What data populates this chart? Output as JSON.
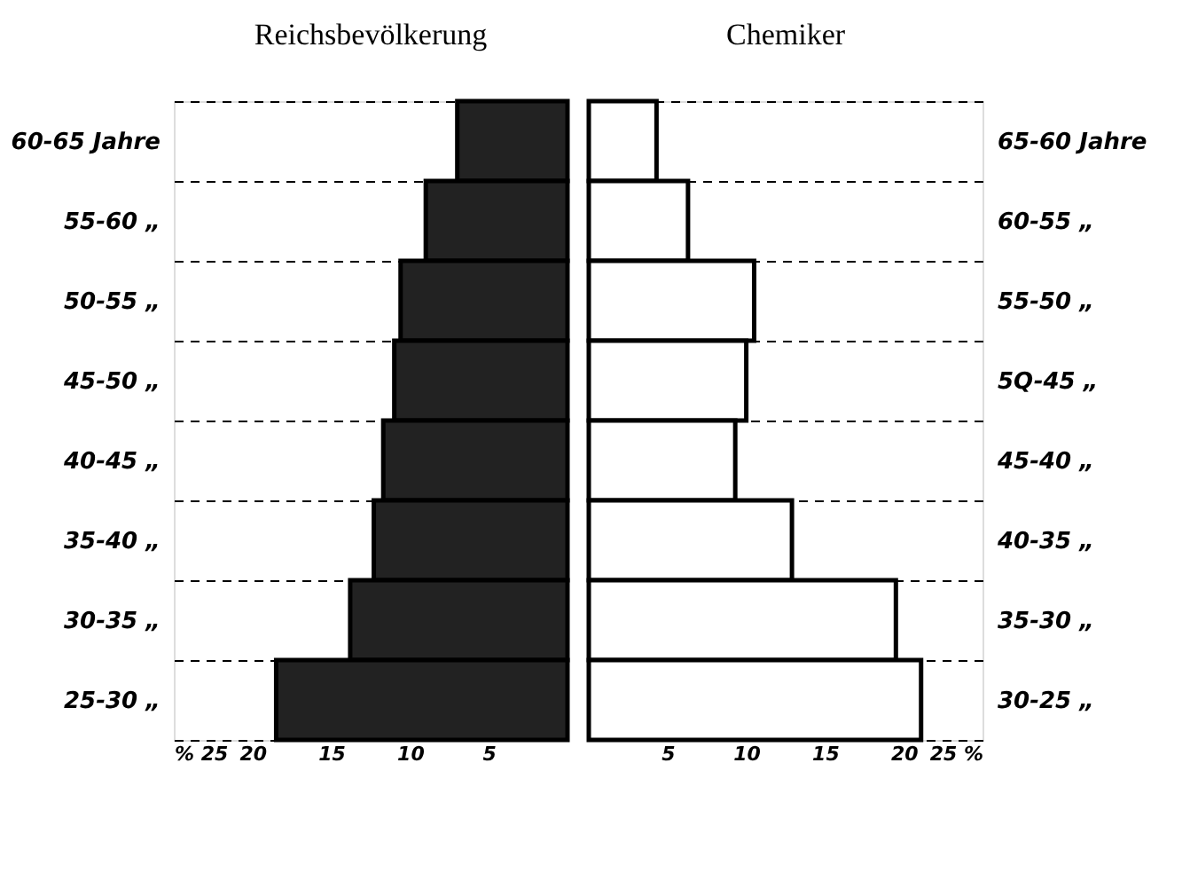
{
  "chart_data": [
    {
      "type": "bar",
      "orientation": "horizontal",
      "title": "Reichsbevölkerung",
      "categories": [
        "60-65 Jahre",
        "55-60 „",
        "50-55 „",
        "45-50 „",
        "40-45 „",
        "35-40 „",
        "30-35 „",
        "25-30 „"
      ],
      "values": [
        7.0,
        9.0,
        10.6,
        11.0,
        11.7,
        12.3,
        13.8,
        18.5
      ],
      "color": "#222222",
      "xlim": [
        25,
        0
      ],
      "xticks": [
        {
          "value": 25,
          "label": "% 25"
        },
        20,
        15,
        10,
        5
      ],
      "grid": "y"
    },
    {
      "type": "bar",
      "orientation": "horizontal",
      "title": "Chemiker",
      "categories": [
        "65-60 Jahre",
        "60-55 „",
        "55-50 „",
        "5Q-45 „",
        "45-40 „",
        "40-35 „",
        "35-30 „",
        "30-25 „"
      ],
      "values": [
        4.3,
        6.3,
        10.5,
        10.0,
        9.3,
        12.9,
        19.5,
        21.1
      ],
      "color": "#ffffff",
      "xlim": [
        0,
        25
      ],
      "xticks": [
        5,
        10,
        15,
        20,
        {
          "value": 25,
          "label": "25 %"
        }
      ],
      "grid": "y"
    }
  ]
}
